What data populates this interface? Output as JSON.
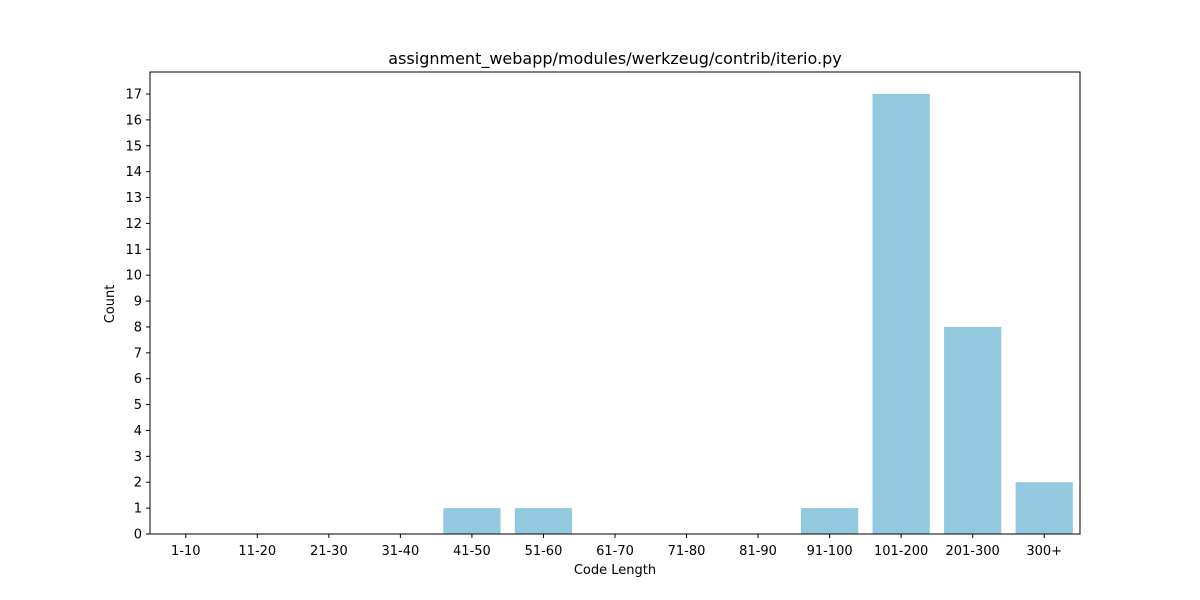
{
  "chart_data": {
    "type": "bar",
    "title": "assignment_webapp/modules/werkzeug/contrib/iterio.py",
    "xlabel": "Code Length",
    "ylabel": "Count",
    "categories": [
      "1-10",
      "11-20",
      "21-30",
      "31-40",
      "41-50",
      "51-60",
      "61-70",
      "71-80",
      "81-90",
      "91-100",
      "101-200",
      "201-300",
      "300+"
    ],
    "values": [
      0,
      0,
      0,
      0,
      1,
      1,
      0,
      0,
      0,
      1,
      17,
      8,
      2
    ],
    "ylim": [
      0,
      17.85
    ],
    "yticks": [
      "0",
      "1",
      "2",
      "3",
      "4",
      "5",
      "6",
      "7",
      "8",
      "9",
      "10",
      "11",
      "12",
      "13",
      "14",
      "15",
      "16",
      "17"
    ],
    "grid": false,
    "bar_color": "#92c9df"
  }
}
